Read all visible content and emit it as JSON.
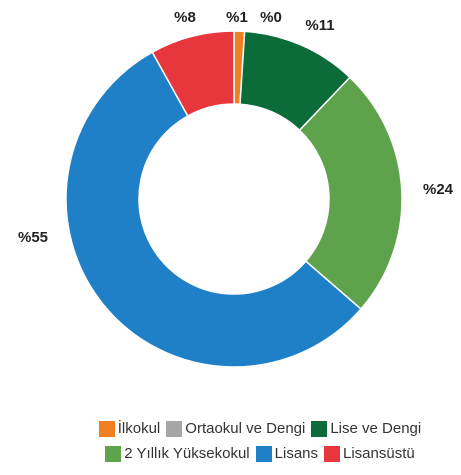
{
  "chart_data": {
    "type": "donut",
    "categories": [
      "İlkokul",
      "Ortaokul ve Dengi",
      "Lise ve Dengi",
      "2 Yıllık Yüksekokul",
      "Lisans",
      "Lisansüstü"
    ],
    "values": [
      1,
      0,
      11,
      24,
      55,
      8
    ],
    "value_labels": [
      "%1",
      "%0",
      "%11",
      "%24",
      "%55",
      "%8"
    ],
    "colors": [
      "#f07f22",
      "#a6a6a6",
      "#0b6b39",
      "#5ea34b",
      "#1f80c8",
      "#e8363d"
    ]
  }
}
